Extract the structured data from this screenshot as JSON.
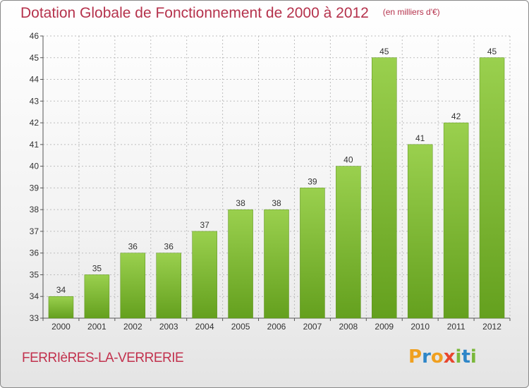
{
  "title": "Dotation Globale de Fonctionnement de 2000 à 2012",
  "subtitle": "(en milliers d'€)",
  "commune": "FERRIèRES-LA-VERRERIE",
  "logo": {
    "letters": [
      "P",
      "r",
      "o",
      "x",
      "i",
      "t",
      "i"
    ],
    "colors": [
      "#f0a020",
      "#2e86c8",
      "#f0a020",
      "#e8462e",
      "#7ab83a",
      "#2e86c8",
      "#7ab83a"
    ]
  },
  "colors": {
    "bar_light": "#9ad04e",
    "bar_dark": "#64a01e",
    "grid": "#bdbdbd",
    "axis": "#555555"
  },
  "chart_data": {
    "type": "bar",
    "categories": [
      "2000",
      "2001",
      "2002",
      "2003",
      "2004",
      "2005",
      "2006",
      "2007",
      "2008",
      "2009",
      "2010",
      "2011",
      "2012"
    ],
    "values": [
      34,
      35,
      36,
      36,
      37,
      38,
      38,
      39,
      40,
      45,
      41,
      42,
      45
    ],
    "ylim": [
      33,
      46
    ],
    "yticks": [
      33,
      34,
      35,
      36,
      37,
      38,
      39,
      40,
      41,
      42,
      43,
      44,
      45,
      46
    ],
    "grid": true,
    "data_labels": true
  }
}
